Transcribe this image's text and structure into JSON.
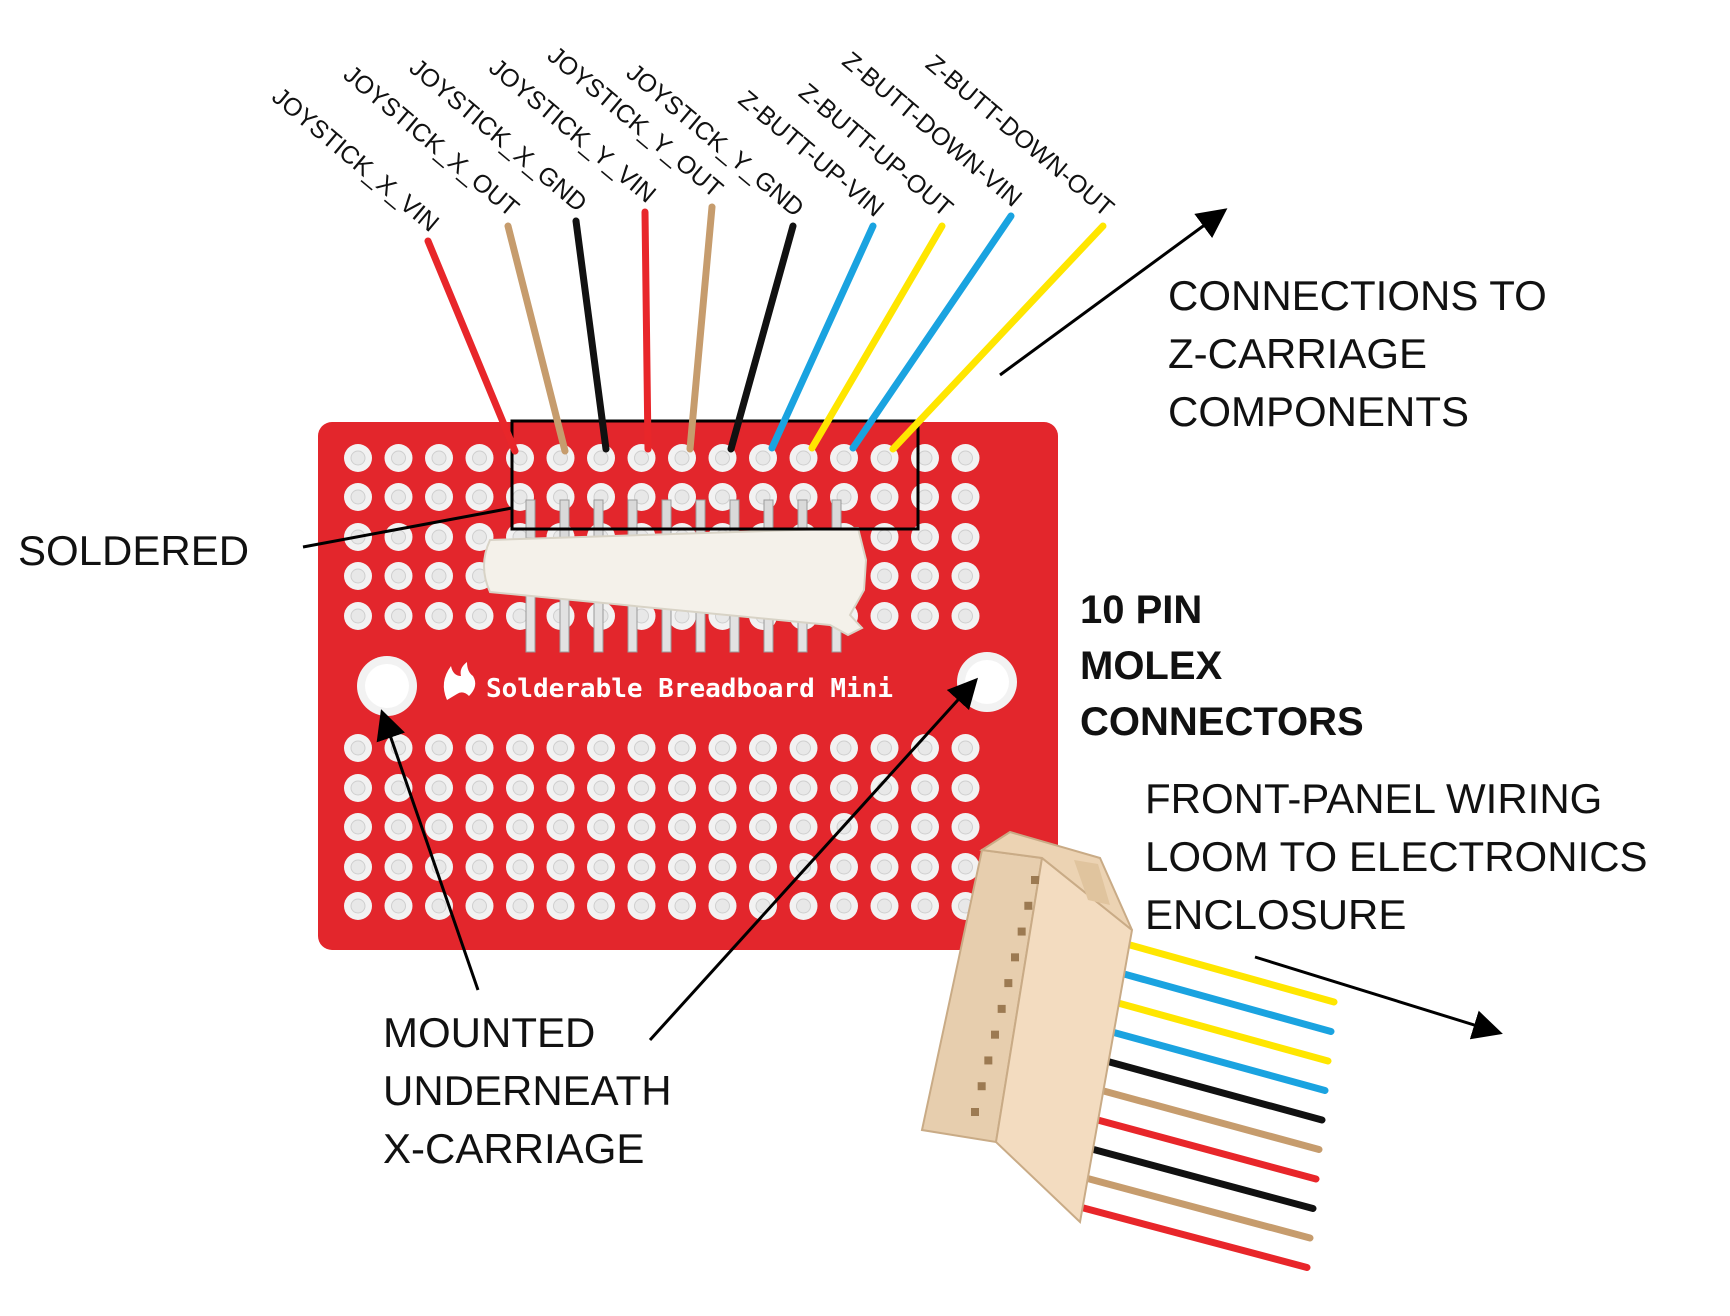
{
  "colors": {
    "board": "#e3262c",
    "board_edge": "#c81a20",
    "hole_ring": "#f2f2f2",
    "hole_center": "#e8e8e8",
    "header_plastic": "#f4f1ea",
    "connector_body": "#f3dcc0",
    "arrow": "#000000",
    "red": "#e8262a",
    "tan": "#c69c6d",
    "black": "#111111",
    "blue": "#1aa3e0",
    "yellow": "#ffe600"
  },
  "board": {
    "title": "Solderable Breadboard Mini"
  },
  "wires": [
    {
      "label": "JOYSTICK_X_VIN",
      "color": "red"
    },
    {
      "label": "JOYSTICK_X_OUT",
      "color": "tan"
    },
    {
      "label": "JOYSTICK_X_GND",
      "color": "black"
    },
    {
      "label": "JOYSTICK_Y_VIN",
      "color": "red"
    },
    {
      "label": "JOYSTICK_Y_OUT",
      "color": "tan"
    },
    {
      "label": "JOYSTICK_Y_GND",
      "color": "black"
    },
    {
      "label": "Z-BUTT-UP-VIN",
      "color": "blue"
    },
    {
      "label": "Z-BUTT-UP-OUT",
      "color": "yellow"
    },
    {
      "label": "Z-BUTT-DOWN-VIN",
      "color": "blue"
    },
    {
      "label": "Z-BUTT-DOWN-OUT",
      "color": "yellow"
    }
  ],
  "loom_wire_colors": [
    "yellow",
    "blue",
    "yellow",
    "blue",
    "black",
    "tan",
    "red",
    "black",
    "tan",
    "red"
  ],
  "annotations": {
    "z_carriage": [
      "CONNECTIONS TO",
      "Z-CARRIAGE",
      "COMPONENTS"
    ],
    "soldered": "SOLDERED",
    "molex": [
      "10 PIN",
      "MOLEX",
      "CONNECTORS"
    ],
    "front_panel": [
      "FRONT-PANEL WIRING",
      "LOOM TO ELECTRONICS",
      "ENCLOSURE"
    ],
    "mounted": [
      "MOUNTED",
      "UNDERNEATH",
      "X-CARRIAGE"
    ]
  }
}
